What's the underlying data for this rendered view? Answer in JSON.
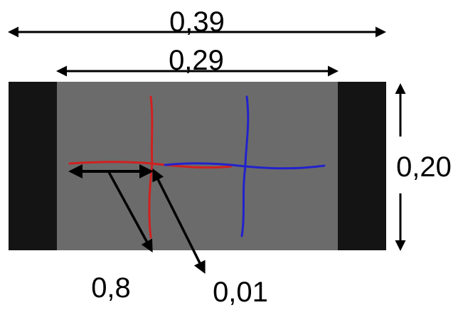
{
  "dimensions": {
    "total_width": "0,39",
    "inner_width": "0,29",
    "height": "0,20",
    "marker_length": "0,8",
    "marker_offset": "0,01"
  },
  "colors": {
    "background": "#ffffff",
    "body": "#6b6b6b",
    "end_caps": "#141414",
    "cross_left": "#d12020",
    "cross_right": "#2222cc",
    "arrow": "#000000"
  }
}
